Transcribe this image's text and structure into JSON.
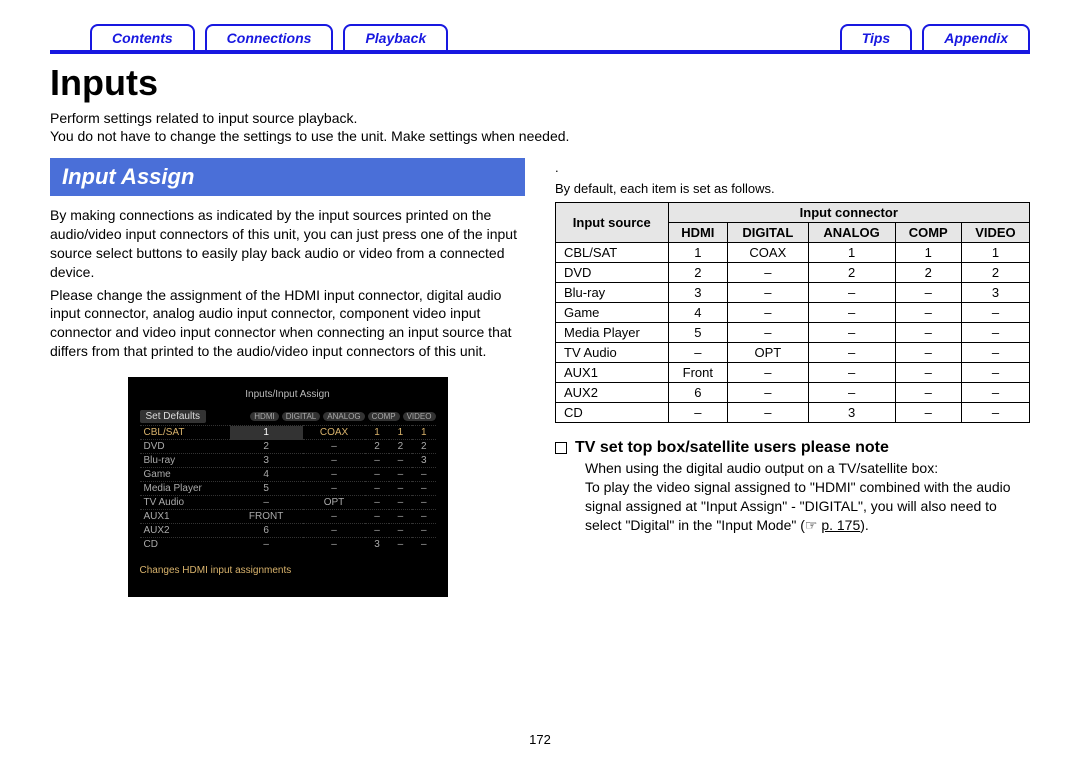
{
  "tabs": [
    "Contents",
    "Connections",
    "Playback",
    "",
    "Tips",
    "Appendix"
  ],
  "page_title": "Inputs",
  "intro": [
    "Perform settings related to input source playback.",
    "You do not have to change the settings to use the unit. Make settings when needed."
  ],
  "section_title": "Input Assign",
  "left_paras": [
    "By making connections as indicated by the input sources printed on the audio/video input connectors of this unit, you can just press one of the input source select buttons to easily play back audio or video from a connected device.",
    "Please change the assignment of the HDMI input connector, digital audio input connector, analog audio input connector, component video input connector and video input connector when connecting an input source that differs from that printed to the audio/video input connectors of this unit."
  ],
  "screenshot": {
    "title": "Inputs/Input Assign",
    "set_defaults": "Set Defaults",
    "pills": [
      "HDMI",
      "DIGITAL",
      "ANALOG",
      "COMP",
      "VIDEO"
    ],
    "rows_src": [
      "CBL/SAT",
      "DVD",
      "Blu-ray",
      "Game",
      "Media Player",
      "TV Audio",
      "AUX1",
      "AUX2",
      "CD"
    ],
    "rows_vals": [
      [
        "1",
        "COAX",
        "1",
        "1",
        "1"
      ],
      [
        "2",
        "–",
        "2",
        "2",
        "2"
      ],
      [
        "3",
        "–",
        "–",
        "–",
        "3"
      ],
      [
        "4",
        "–",
        "–",
        "–",
        "–"
      ],
      [
        "5",
        "–",
        "–",
        "–",
        "–"
      ],
      [
        "–",
        "OPT",
        "–",
        "–",
        "–"
      ],
      [
        "FRONT",
        "–",
        "–",
        "–",
        "–"
      ],
      [
        "6",
        "–",
        "–",
        "–",
        "–"
      ],
      [
        "–",
        "–",
        "3",
        "–",
        "–"
      ]
    ],
    "footer": "Changes HDMI input assignments"
  },
  "right_intro": [
    "By default, each item is set as follows."
  ],
  "table": {
    "header_top_src": "Input source",
    "header_top_conn": "Input connector",
    "cols": [
      "HDMI",
      "DIGITAL",
      "ANALOG",
      "COMP",
      "VIDEO"
    ],
    "rows": [
      {
        "src": "CBL/SAT",
        "v": [
          "1",
          "COAX",
          "1",
          "1",
          "1"
        ]
      },
      {
        "src": "DVD",
        "v": [
          "2",
          "–",
          "2",
          "2",
          "2"
        ]
      },
      {
        "src": "Blu-ray",
        "v": [
          "3",
          "–",
          "–",
          "–",
          "3"
        ]
      },
      {
        "src": "Game",
        "v": [
          "4",
          "–",
          "–",
          "–",
          "–"
        ]
      },
      {
        "src": "Media Player",
        "v": [
          "5",
          "–",
          "–",
          "–",
          "–"
        ]
      },
      {
        "src": "TV Audio",
        "v": [
          "–",
          "OPT",
          "–",
          "–",
          "–"
        ]
      },
      {
        "src": "AUX1",
        "v": [
          "Front",
          "–",
          "–",
          "–",
          "–"
        ]
      },
      {
        "src": "AUX2",
        "v": [
          "6",
          "–",
          "–",
          "–",
          "–"
        ]
      },
      {
        "src": "CD",
        "v": [
          "–",
          "–",
          "3",
          "–",
          "–"
        ]
      }
    ]
  },
  "note_title": "TV set top box/satellite users please note",
  "note_body": [
    "When using the digital audio output on a TV/satellite box:",
    "To play the video signal assigned to \"HDMI\" combined with the audio signal assigned at \"Input Assign\" - \"DIGITAL\", you will also need to select \"Digital\" in the \"Input Mode\" (☞ "
  ],
  "note_link": "p. 175",
  "note_body_after": ").",
  "page_number": "172"
}
